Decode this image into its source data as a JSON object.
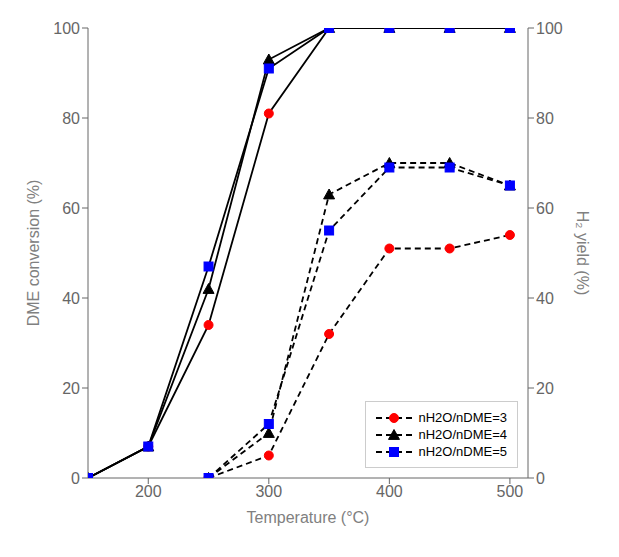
{
  "chart_data": {
    "type": "line",
    "xlabel": "Temperature (°C)",
    "ylabel": "DME conversion (%)",
    "y2label": "H₂ yield (%)",
    "xlim": [
      150,
      515
    ],
    "xticks": [
      200,
      300,
      400,
      500
    ],
    "ylim": [
      0,
      100
    ],
    "yticks": [
      0,
      20,
      40,
      60,
      80,
      100
    ],
    "y2lim": [
      0,
      100
    ],
    "y2ticks": [
      0,
      20,
      40,
      60,
      80,
      100
    ],
    "grid": false,
    "legend": "lower right",
    "series": [
      {
        "name": "nH2O/nDME=3",
        "color": "red",
        "marker": "circle",
        "conversion": {
          "x": [
            150,
            200,
            250,
            300,
            350,
            400,
            450,
            500
          ],
          "values": [
            0,
            7,
            34,
            81,
            100,
            100,
            100,
            100
          ],
          "color": "black",
          "line_style": "solid"
        },
        "yield": {
          "x": [
            250,
            300,
            350,
            400,
            450,
            500
          ],
          "values": [
            0,
            5,
            32,
            51,
            51,
            54
          ],
          "color": "black",
          "line_style": "dashed",
          "axis": "y2"
        }
      },
      {
        "name": "nH2O/nDME=4",
        "color": "black",
        "marker": "triangle",
        "conversion": {
          "x": [
            150,
            200,
            250,
            300,
            350,
            400,
            450,
            500
          ],
          "values": [
            0,
            7,
            42,
            93,
            100,
            100,
            100,
            100
          ],
          "color": "black",
          "line_style": "solid"
        },
        "yield": {
          "x": [
            250,
            300,
            350,
            400,
            450,
            500
          ],
          "values": [
            0,
            10,
            63,
            70,
            70,
            65
          ],
          "color": "black",
          "line_style": "dashed",
          "axis": "y2"
        }
      },
      {
        "name": "nH2O/nDME=5",
        "color": "blue",
        "marker": "square",
        "conversion": {
          "x": [
            150,
            200,
            250,
            300,
            350,
            400,
            450,
            500
          ],
          "values": [
            0,
            7,
            47,
            91,
            100,
            100,
            100,
            100
          ],
          "color": "black",
          "line_style": "solid"
        },
        "yield": {
          "x": [
            250,
            300,
            350,
            400,
            450,
            500
          ],
          "values": [
            0,
            12,
            55,
            69,
            69,
            65
          ],
          "color": "black",
          "line_style": "dashed",
          "axis": "y2"
        }
      }
    ]
  }
}
